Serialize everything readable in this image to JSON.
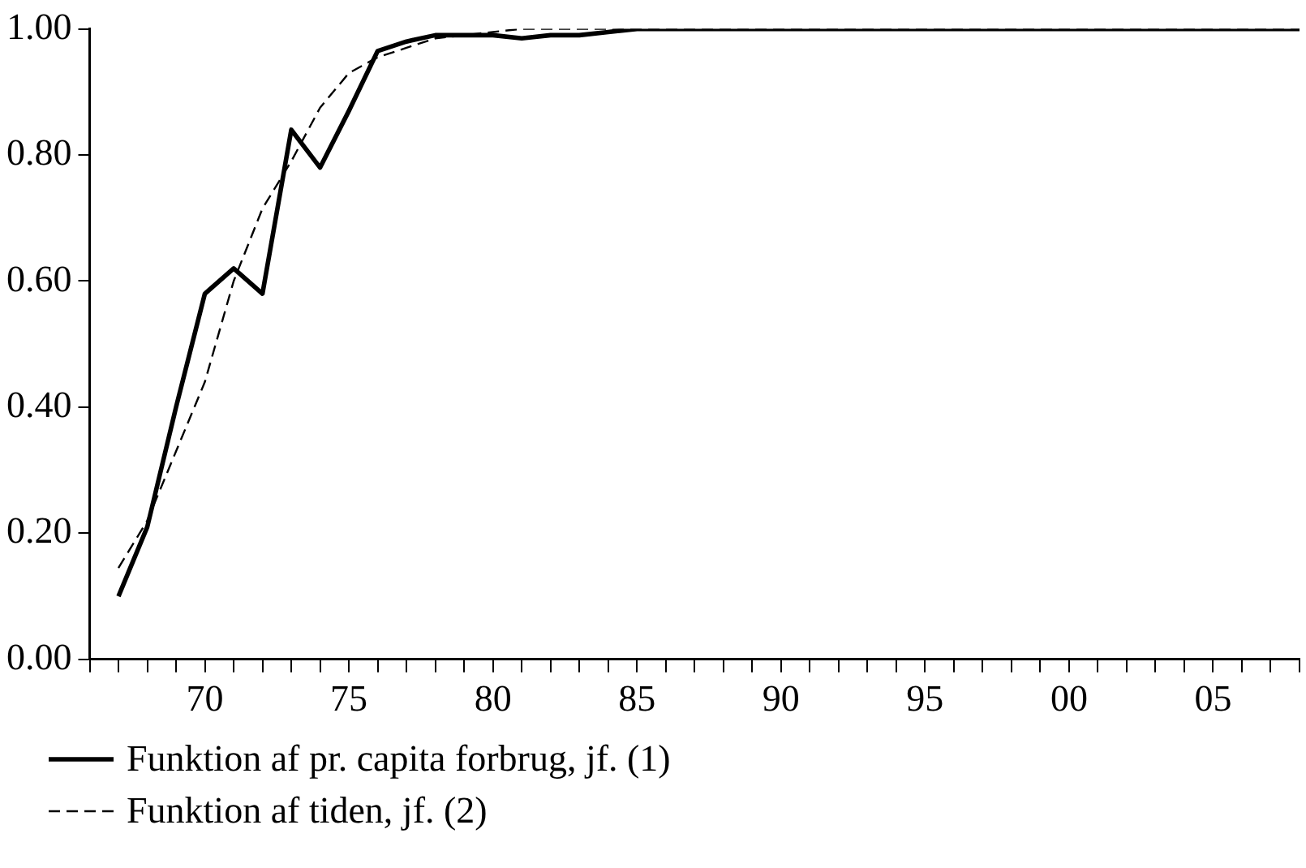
{
  "chart_data": {
    "type": "line",
    "x": [
      1967,
      1968,
      1969,
      1970,
      1971,
      1972,
      1973,
      1974,
      1975,
      1976,
      1977,
      1978,
      1979,
      1980,
      1981,
      1982,
      1983,
      1984,
      1985,
      1986,
      1987,
      1988,
      1989,
      1990,
      1991,
      1992,
      1993,
      1994,
      1995,
      1996,
      1997,
      1998,
      1999,
      2000,
      2001,
      2002,
      2003,
      2004,
      2005,
      2006,
      2007,
      2008
    ],
    "series": [
      {
        "name": "Funktion af pr. capita forbrug, jf. (1)",
        "color": "#000000",
        "line_style": "solid",
        "values": [
          0.1,
          0.21,
          0.4,
          0.58,
          0.62,
          0.58,
          0.84,
          0.78,
          0.87,
          0.965,
          0.98,
          0.99,
          0.99,
          0.99,
          0.985,
          0.99,
          0.99,
          0.995,
          1.0,
          1.0,
          1.0,
          1.0,
          1.0,
          1.0,
          1.0,
          1.0,
          1.0,
          1.0,
          1.0,
          1.0,
          1.0,
          1.0,
          1.0,
          1.0,
          1.0,
          1.0,
          1.0,
          1.0,
          1.0,
          1.0,
          1.0,
          1.0
        ]
      },
      {
        "name": "Funktion af tiden, jf. (2)",
        "color": "#000000",
        "line_style": "dashed",
        "values": [
          0.145,
          0.22,
          0.33,
          0.44,
          0.6,
          0.715,
          0.79,
          0.875,
          0.93,
          0.955,
          0.97,
          0.985,
          0.99,
          0.995,
          1.0,
          1.0,
          1.0,
          1.0,
          1.0,
          1.0,
          1.0,
          1.0,
          1.0,
          1.0,
          1.0,
          1.0,
          1.0,
          1.0,
          1.0,
          1.0,
          1.0,
          1.0,
          1.0,
          1.0,
          1.0,
          1.0,
          1.0,
          1.0,
          1.0,
          1.0,
          1.0,
          1.0
        ]
      }
    ],
    "xlim": [
      1966,
      2008
    ],
    "xticks": [
      {
        "value": 1966,
        "label": null
      },
      {
        "value": 1967,
        "label": null
      },
      {
        "value": 1968,
        "label": null
      },
      {
        "value": 1969,
        "label": null
      },
      {
        "value": 1970,
        "label": "70"
      },
      {
        "value": 1971,
        "label": null
      },
      {
        "value": 1972,
        "label": null
      },
      {
        "value": 1973,
        "label": null
      },
      {
        "value": 1974,
        "label": null
      },
      {
        "value": 1975,
        "label": "75"
      },
      {
        "value": 1976,
        "label": null
      },
      {
        "value": 1977,
        "label": null
      },
      {
        "value": 1978,
        "label": null
      },
      {
        "value": 1979,
        "label": null
      },
      {
        "value": 1980,
        "label": "80"
      },
      {
        "value": 1981,
        "label": null
      },
      {
        "value": 1982,
        "label": null
      },
      {
        "value": 1983,
        "label": null
      },
      {
        "value": 1984,
        "label": null
      },
      {
        "value": 1985,
        "label": "85"
      },
      {
        "value": 1986,
        "label": null
      },
      {
        "value": 1987,
        "label": null
      },
      {
        "value": 1988,
        "label": null
      },
      {
        "value": 1989,
        "label": null
      },
      {
        "value": 1990,
        "label": "90"
      },
      {
        "value": 1991,
        "label": null
      },
      {
        "value": 1992,
        "label": null
      },
      {
        "value": 1993,
        "label": null
      },
      {
        "value": 1994,
        "label": null
      },
      {
        "value": 1995,
        "label": "95"
      },
      {
        "value": 1996,
        "label": null
      },
      {
        "value": 1997,
        "label": null
      },
      {
        "value": 1998,
        "label": null
      },
      {
        "value": 1999,
        "label": null
      },
      {
        "value": 2000,
        "label": "00"
      },
      {
        "value": 2001,
        "label": null
      },
      {
        "value": 2002,
        "label": null
      },
      {
        "value": 2003,
        "label": null
      },
      {
        "value": 2004,
        "label": null
      },
      {
        "value": 2005,
        "label": "05"
      },
      {
        "value": 2006,
        "label": null
      },
      {
        "value": 2007,
        "label": null
      },
      {
        "value": 2008,
        "label": null
      }
    ],
    "ylim": [
      0,
      1
    ],
    "yticks": [
      {
        "value": 0,
        "label": "0.00"
      },
      {
        "value": 0.2,
        "label": "0.20"
      },
      {
        "value": 0.4,
        "label": "0.40"
      },
      {
        "value": 0.6,
        "label": "0.60"
      },
      {
        "value": 0.8,
        "label": "0.80"
      },
      {
        "value": 1,
        "label": "1.00"
      }
    ],
    "grid": false,
    "legend": "bottom",
    "marker": "none"
  }
}
